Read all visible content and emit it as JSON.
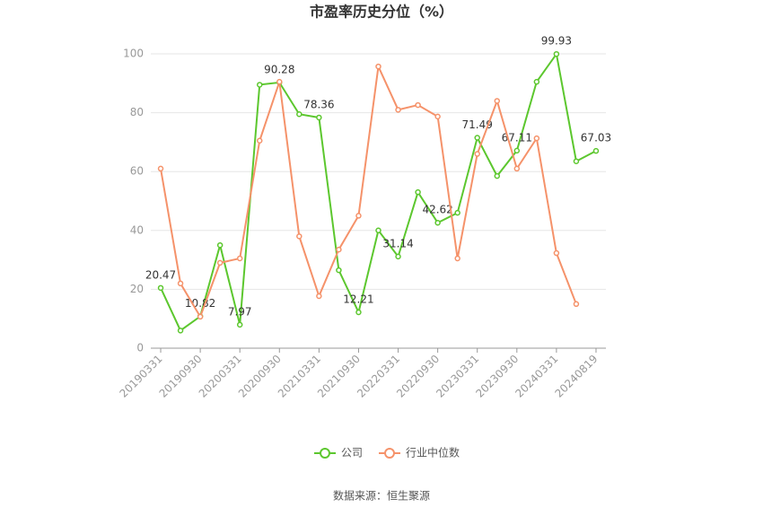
{
  "chart_data": {
    "type": "line",
    "title": "市盈率历史分位（%）",
    "categories": [
      "20190331",
      null,
      "20190930",
      null,
      "20200331",
      null,
      "20200930",
      null,
      "20210331",
      null,
      "20210930",
      null,
      "20220331",
      null,
      "20220930",
      null,
      "20230331",
      null,
      "20230930",
      null,
      "20240331",
      null,
      "20240819"
    ],
    "series": [
      {
        "name": "公司",
        "color": "#5cc72e",
        "values": [
          20.47,
          6,
          10.82,
          35,
          7.97,
          89.5,
          90.28,
          79.5,
          78.36,
          26.5,
          12.21,
          40,
          31.14,
          53,
          42.62,
          46,
          71.49,
          58.5,
          67.11,
          90.5,
          99.93,
          63.5,
          67.03
        ]
      },
      {
        "name": "行业中位数",
        "color": "#f5926a",
        "values": [
          61,
          22,
          10.7,
          29,
          30.5,
          70.5,
          90.5,
          38,
          17.7,
          33.5,
          45,
          95.7,
          81,
          82.6,
          78.7,
          30.5,
          66,
          84,
          61,
          71.3,
          32.3,
          15,
          null
        ]
      }
    ],
    "ylim": [
      0,
      100
    ],
    "yticks": [
      0,
      20,
      40,
      60,
      80,
      100
    ],
    "grid": true,
    "source": "数据来源：恒生聚源"
  }
}
